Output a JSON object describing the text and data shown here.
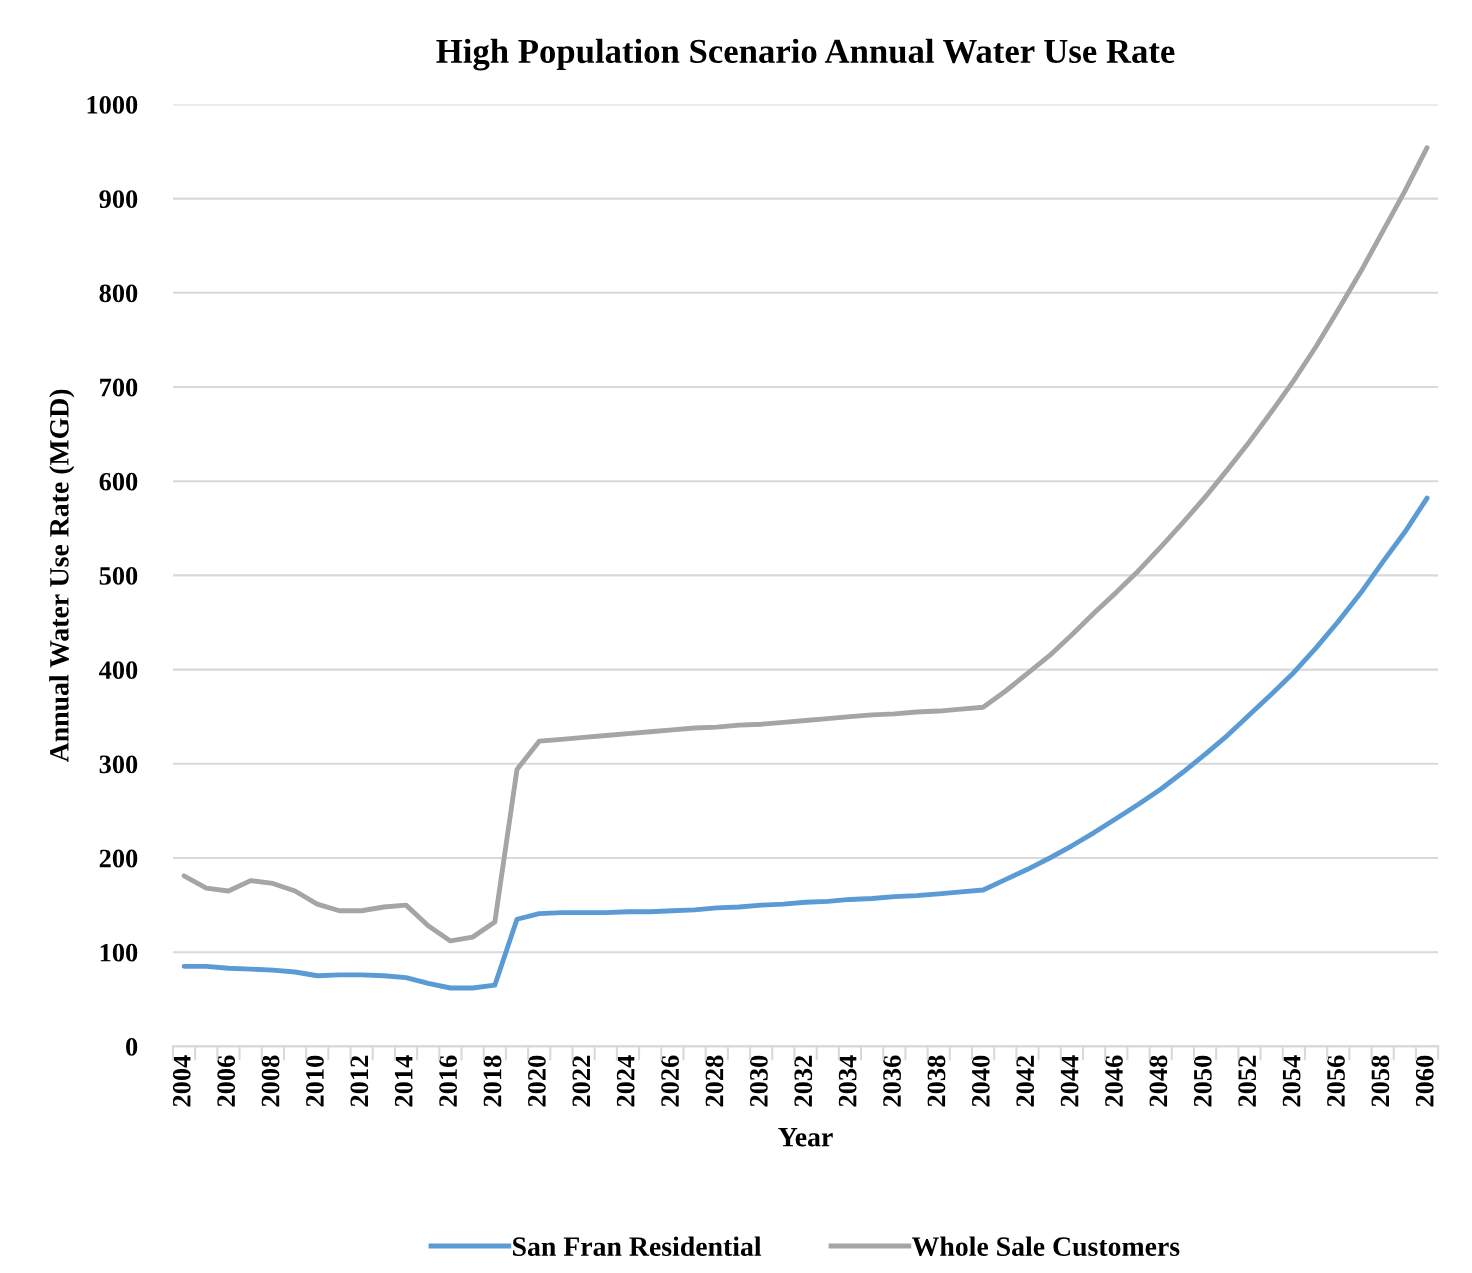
{
  "chart_data": {
    "type": "line",
    "title": "High Population Scenario Annual Water Use Rate",
    "xlabel": "Year",
    "ylabel": "Annual Water Use Rate (MGD)",
    "categories": [
      "2004",
      null,
      "2006",
      null,
      "2008",
      null,
      "2010",
      null,
      "2012",
      null,
      "2014",
      null,
      "2016",
      null,
      "2018",
      null,
      "2020",
      null,
      "2022",
      null,
      "2024",
      null,
      "2026",
      null,
      "2028",
      null,
      "2030",
      null,
      "2032",
      null,
      "2034",
      null,
      "2036",
      null,
      "2038",
      null,
      "2040",
      null,
      "2042",
      null,
      "2044",
      null,
      "2046",
      null,
      "2048",
      null,
      "2050",
      null,
      "2052",
      null,
      "2054",
      null,
      "2056",
      null,
      "2058",
      null,
      "2060"
    ],
    "series": [
      {
        "name": "San Fran Residential",
        "color": "#5b9bd5",
        "values": [
          85,
          85,
          83,
          82,
          81,
          79,
          75,
          76,
          76,
          75,
          73,
          67,
          62,
          62,
          65,
          135,
          141,
          142,
          142,
          142,
          143,
          143,
          144,
          145,
          147,
          148,
          150,
          151,
          153,
          154,
          156,
          157,
          159,
          160,
          162,
          164,
          166,
          177,
          188,
          200,
          213,
          227,
          242,
          257,
          273,
          291,
          310,
          330,
          352,
          374,
          397,
          423,
          451,
          481,
          514,
          546,
          582
        ]
      },
      {
        "name": "Whole Sale Customers",
        "color": "#a5a5a5",
        "values": [
          181,
          168,
          165,
          176,
          173,
          165,
          151,
          144,
          144,
          148,
          150,
          128,
          112,
          116,
          132,
          294,
          324,
          326,
          328,
          330,
          332,
          334,
          336,
          338,
          339,
          341,
          342,
          344,
          346,
          348,
          350,
          352,
          353,
          355,
          356,
          358,
          360,
          377,
          396,
          415,
          437,
          460,
          482,
          505,
          530,
          556,
          583,
          612,
          642,
          674,
          707,
          743,
          782,
          822,
          865,
          908,
          954
        ]
      }
    ],
    "ylim": [
      0,
      1000
    ],
    "yticks": [
      0,
      100,
      200,
      300,
      400,
      500,
      600,
      700,
      800,
      900,
      1000
    ],
    "grid": "y",
    "legend": "bottom",
    "marker": "none",
    "line_style": "solid"
  }
}
